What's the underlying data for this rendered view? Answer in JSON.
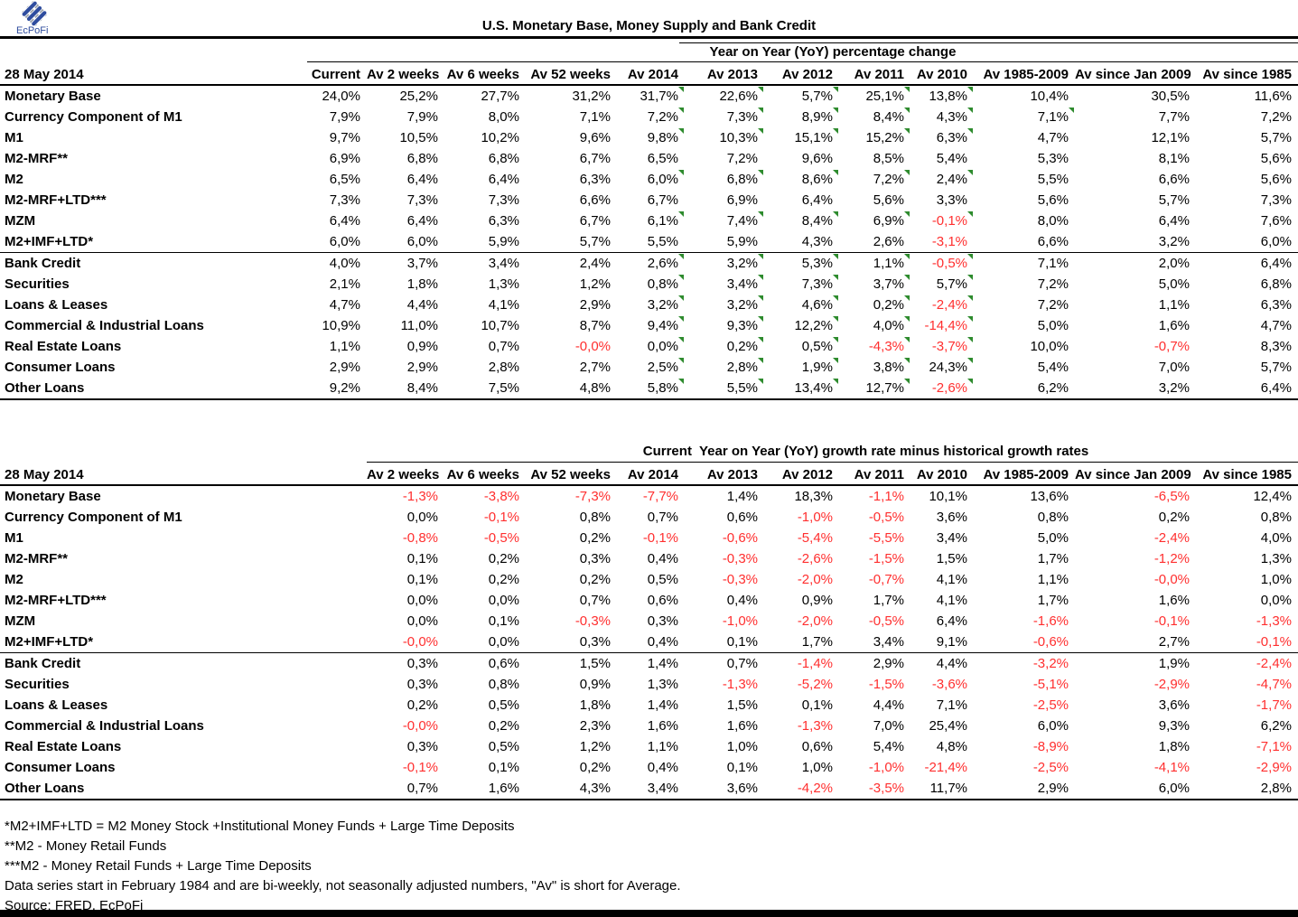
{
  "colors": {
    "negative_text": "#ff2f2f",
    "comment_flag_green": "#2e8b2e",
    "logo_blue": "#2f4d9e",
    "logo_gray": "#9aa2ac",
    "rule_black": "#000000"
  },
  "logo": {
    "text": "EcPoFi"
  },
  "title": "U.S. Monetary Base, Money Supply and Bank Credit",
  "table1": {
    "date_label": "28 May 2014",
    "span_header": "Year on Year (YoY) percentage change",
    "columns": [
      "Current",
      "Av 2 weeks",
      "Av 6 weeks",
      "Av 52 weeks",
      "Av 2014",
      "Av 2013",
      "Av 2012",
      "Av 2011",
      "Av 2010",
      "Av 1985-2009",
      "Av since Jan 2009",
      "Av since 1985"
    ],
    "rows": [
      {
        "label": "Monetary Base",
        "indent": 0,
        "values": [
          "24,0%",
          "25,2%",
          "27,7%",
          "31,2%",
          "31,7%",
          "22,6%",
          "5,7%",
          "25,1%",
          "13,8%",
          "10,4%",
          "30,5%",
          "11,6%"
        ]
      },
      {
        "label": "Currency Component of M1",
        "indent": 0,
        "values": [
          "7,9%",
          "7,9%",
          "8,0%",
          "7,1%",
          "7,2%",
          "7,3%",
          "8,9%",
          "8,4%",
          "4,3%",
          "7,1%",
          "7,7%",
          "7,2%"
        ]
      },
      {
        "label": "M1",
        "indent": 0,
        "values": [
          "9,7%",
          "10,5%",
          "10,2%",
          "9,6%",
          "9,8%",
          "10,3%",
          "15,1%",
          "15,2%",
          "6,3%",
          "4,7%",
          "12,1%",
          "5,7%"
        ]
      },
      {
        "label": "M2-MRF**",
        "indent": 0,
        "values": [
          "6,9%",
          "6,8%",
          "6,8%",
          "6,7%",
          "6,5%",
          "7,2%",
          "9,6%",
          "8,5%",
          "5,4%",
          "5,3%",
          "8,1%",
          "5,6%"
        ]
      },
      {
        "label": "M2",
        "indent": 0,
        "values": [
          "6,5%",
          "6,4%",
          "6,4%",
          "6,3%",
          "6,0%",
          "6,8%",
          "8,6%",
          "7,2%",
          "2,4%",
          "5,5%",
          "6,6%",
          "5,6%"
        ]
      },
      {
        "label": "M2-MRF+LTD***",
        "indent": 0,
        "values": [
          "7,3%",
          "7,3%",
          "7,3%",
          "6,6%",
          "6,7%",
          "6,9%",
          "6,4%",
          "5,6%",
          "3,3%",
          "5,6%",
          "5,7%",
          "7,3%"
        ]
      },
      {
        "label": "MZM",
        "indent": 0,
        "values": [
          "6,4%",
          "6,4%",
          "6,3%",
          "6,7%",
          "6,1%",
          "7,4%",
          "8,4%",
          "6,9%",
          "-0,1%",
          "8,0%",
          "6,4%",
          "7,6%"
        ]
      },
      {
        "label": "M2+IMF+LTD*",
        "indent": 0,
        "values": [
          "6,0%",
          "6,0%",
          "5,9%",
          "5,7%",
          "5,5%",
          "5,9%",
          "4,3%",
          "2,6%",
          "-3,1%",
          "6,6%",
          "3,2%",
          "6,0%"
        ]
      },
      {
        "label": "Bank Credit",
        "indent": 0,
        "separator": true,
        "values": [
          "4,0%",
          "3,7%",
          "3,4%",
          "2,4%",
          "2,6%",
          "3,2%",
          "5,3%",
          "1,1%",
          "-0,5%",
          "7,1%",
          "2,0%",
          "6,4%"
        ]
      },
      {
        "label": "Securities",
        "indent": 1,
        "values": [
          "2,1%",
          "1,8%",
          "1,3%",
          "1,2%",
          "0,8%",
          "3,4%",
          "7,3%",
          "3,7%",
          "5,7%",
          "7,2%",
          "5,0%",
          "6,8%"
        ]
      },
      {
        "label": "Loans & Leases",
        "indent": 1,
        "values": [
          "4,7%",
          "4,4%",
          "4,1%",
          "2,9%",
          "3,2%",
          "3,2%",
          "4,6%",
          "0,2%",
          "-2,4%",
          "7,2%",
          "1,1%",
          "6,3%"
        ]
      },
      {
        "label": "Commercial & Industrial Loans",
        "indent": 2,
        "values": [
          "10,9%",
          "11,0%",
          "10,7%",
          "8,7%",
          "9,4%",
          "9,3%",
          "12,2%",
          "4,0%",
          "-14,4%",
          "5,0%",
          "1,6%",
          "4,7%"
        ]
      },
      {
        "label": "Real Estate Loans",
        "indent": 2,
        "values": [
          "1,1%",
          "0,9%",
          "0,7%",
          "-0,0%",
          "0,0%",
          "0,2%",
          "0,5%",
          "-4,3%",
          "-3,7%",
          "10,0%",
          "-0,7%",
          "8,3%"
        ]
      },
      {
        "label": "Consumer Loans",
        "indent": 2,
        "values": [
          "2,9%",
          "2,9%",
          "2,8%",
          "2,7%",
          "2,5%",
          "2,8%",
          "1,9%",
          "3,8%",
          "24,3%",
          "5,4%",
          "7,0%",
          "5,7%"
        ]
      },
      {
        "label": "Other Loans",
        "indent": 2,
        "values": [
          "9,2%",
          "8,4%",
          "7,5%",
          "4,8%",
          "5,8%",
          "5,5%",
          "13,4%",
          "12,7%",
          "-2,6%",
          "6,2%",
          "3,2%",
          "6,4%"
        ]
      }
    ],
    "flags": {
      "columns": [
        4,
        5,
        6,
        7,
        8
      ],
      "rows": [
        0,
        1,
        2,
        4,
        6,
        8,
        9,
        10,
        11,
        12,
        13,
        14
      ],
      "extra_cells": [
        [
          1,
          9
        ]
      ]
    }
  },
  "table2": {
    "date_label": "28 May 2014",
    "span_header": "Current  Year on Year (YoY) growth rate minus historical growth rates",
    "columns": [
      "Av 2 weeks",
      "Av 6 weeks",
      "Av 52 weeks",
      "Av 2014",
      "Av 2013",
      "Av 2012",
      "Av 2011",
      "Av 2010",
      "Av 1985-2009",
      "Av since Jan 2009",
      "Av since 1985"
    ],
    "rows": [
      {
        "label": "Monetary Base",
        "indent": 0,
        "values": [
          "-1,3%",
          "-3,8%",
          "-7,3%",
          "-7,7%",
          "1,4%",
          "18,3%",
          "-1,1%",
          "10,1%",
          "13,6%",
          "-6,5%",
          "12,4%"
        ]
      },
      {
        "label": "Currency Component of M1",
        "indent": 0,
        "values": [
          "0,0%",
          "-0,1%",
          "0,8%",
          "0,7%",
          "0,6%",
          "-1,0%",
          "-0,5%",
          "3,6%",
          "0,8%",
          "0,2%",
          "0,8%"
        ]
      },
      {
        "label": "M1",
        "indent": 0,
        "values": [
          "-0,8%",
          "-0,5%",
          "0,2%",
          "-0,1%",
          "-0,6%",
          "-5,4%",
          "-5,5%",
          "3,4%",
          "5,0%",
          "-2,4%",
          "4,0%"
        ]
      },
      {
        "label": "M2-MRF**",
        "indent": 0,
        "values": [
          "0,1%",
          "0,2%",
          "0,3%",
          "0,4%",
          "-0,3%",
          "-2,6%",
          "-1,5%",
          "1,5%",
          "1,7%",
          "-1,2%",
          "1,3%"
        ]
      },
      {
        "label": "M2",
        "indent": 0,
        "values": [
          "0,1%",
          "0,2%",
          "0,2%",
          "0,5%",
          "-0,3%",
          "-2,0%",
          "-0,7%",
          "4,1%",
          "1,1%",
          "-0,0%",
          "1,0%"
        ]
      },
      {
        "label": "M2-MRF+LTD***",
        "indent": 0,
        "values": [
          "0,0%",
          "0,0%",
          "0,7%",
          "0,6%",
          "0,4%",
          "0,9%",
          "1,7%",
          "4,1%",
          "1,7%",
          "1,6%",
          "0,0%"
        ]
      },
      {
        "label": "MZM",
        "indent": 0,
        "values": [
          "0,0%",
          "0,1%",
          "-0,3%",
          "0,3%",
          "-1,0%",
          "-2,0%",
          "-0,5%",
          "6,4%",
          "-1,6%",
          "-0,1%",
          "-1,3%"
        ]
      },
      {
        "label": "M2+IMF+LTD*",
        "indent": 0,
        "values": [
          "-0,0%",
          "0,0%",
          "0,3%",
          "0,4%",
          "0,1%",
          "1,7%",
          "3,4%",
          "9,1%",
          "-0,6%",
          "2,7%",
          "-0,1%"
        ]
      },
      {
        "label": "Bank Credit",
        "indent": 0,
        "separator": true,
        "values": [
          "0,3%",
          "0,6%",
          "1,5%",
          "1,4%",
          "0,7%",
          "-1,4%",
          "2,9%",
          "4,4%",
          "-3,2%",
          "1,9%",
          "-2,4%"
        ]
      },
      {
        "label": "Securities",
        "indent": 1,
        "values": [
          "0,3%",
          "0,8%",
          "0,9%",
          "1,3%",
          "-1,3%",
          "-5,2%",
          "-1,5%",
          "-3,6%",
          "-5,1%",
          "-2,9%",
          "-4,7%"
        ]
      },
      {
        "label": "Loans & Leases",
        "indent": 1,
        "values": [
          "0,2%",
          "0,5%",
          "1,8%",
          "1,4%",
          "1,5%",
          "0,1%",
          "4,4%",
          "7,1%",
          "-2,5%",
          "3,6%",
          "-1,7%"
        ]
      },
      {
        "label": "Commercial & Industrial Loans",
        "indent": 2,
        "values": [
          "-0,0%",
          "0,2%",
          "2,3%",
          "1,6%",
          "1,6%",
          "-1,3%",
          "7,0%",
          "25,4%",
          "6,0%",
          "9,3%",
          "6,2%"
        ]
      },
      {
        "label": "Real Estate Loans",
        "indent": 2,
        "values": [
          "0,3%",
          "0,5%",
          "1,2%",
          "1,1%",
          "1,0%",
          "0,6%",
          "5,4%",
          "4,8%",
          "-8,9%",
          "1,8%",
          "-7,1%"
        ]
      },
      {
        "label": "Consumer Loans",
        "indent": 2,
        "values": [
          "-0,1%",
          "0,1%",
          "0,2%",
          "0,4%",
          "0,1%",
          "1,0%",
          "-1,0%",
          "-21,4%",
          "-2,5%",
          "-4,1%",
          "-2,9%"
        ]
      },
      {
        "label": "Other Loans",
        "indent": 2,
        "values": [
          "0,7%",
          "1,6%",
          "4,3%",
          "3,4%",
          "3,6%",
          "-4,2%",
          "-3,5%",
          "11,7%",
          "2,9%",
          "6,0%",
          "2,8%"
        ]
      }
    ]
  },
  "footnotes": [
    "*M2+IMF+LTD =  M2 Money Stock +Institutional Money Funds + Large Time Deposits",
    "**M2 - Money Retail Funds",
    "***M2 - Money Retail Funds + Large Time Deposits",
    "Data series start in February 1984 and are bi-weekly, not seasonally adjusted numbers, \"Av\" is short for Average.",
    "Source: FRED, EcPoFi"
  ]
}
